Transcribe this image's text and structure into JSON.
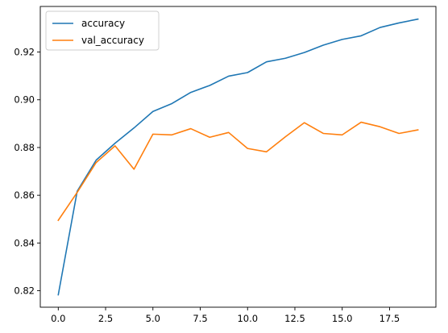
{
  "chart_data": {
    "type": "line",
    "title": "",
    "xlabel": "",
    "ylabel": "",
    "xlim": [
      -0.95,
      19.95
    ],
    "ylim": [
      0.8131,
      0.9391
    ],
    "grid": false,
    "legend_position": "top-left",
    "x": [
      0,
      1,
      2,
      3,
      4,
      5,
      6,
      7,
      8,
      9,
      10,
      11,
      12,
      13,
      14,
      15,
      16,
      17,
      18,
      19
    ],
    "x_ticks": [
      0,
      2.5,
      5,
      7.5,
      10,
      12.5,
      15,
      17.5
    ],
    "x_tick_labels": [
      "0.0",
      "2.5",
      "5.0",
      "7.5",
      "10.0",
      "12.5",
      "15.0",
      "17.5"
    ],
    "y_ticks": [
      0.82,
      0.84,
      0.86,
      0.88,
      0.9,
      0.92
    ],
    "y_tick_labels": [
      "0.82",
      "0.84",
      "0.86",
      "0.88",
      "0.90",
      "0.92"
    ],
    "series": [
      {
        "name": "accuracy",
        "color": "#1f77b4",
        "values": [
          0.8183,
          0.8617,
          0.8747,
          0.8818,
          0.8882,
          0.8951,
          0.8984,
          0.9031,
          0.906,
          0.9099,
          0.9114,
          0.9159,
          0.9174,
          0.9198,
          0.9229,
          0.9253,
          0.9268,
          0.9303,
          0.9322,
          0.9338
        ]
      },
      {
        "name": "val_accuracy",
        "color": "#ff7f0e",
        "values": [
          0.8495,
          0.8612,
          0.8737,
          0.8807,
          0.8709,
          0.8856,
          0.8853,
          0.8879,
          0.8843,
          0.8863,
          0.8796,
          0.8782,
          0.8845,
          0.8904,
          0.8859,
          0.8853,
          0.8906,
          0.8887,
          0.8859,
          0.8874
        ]
      }
    ]
  }
}
